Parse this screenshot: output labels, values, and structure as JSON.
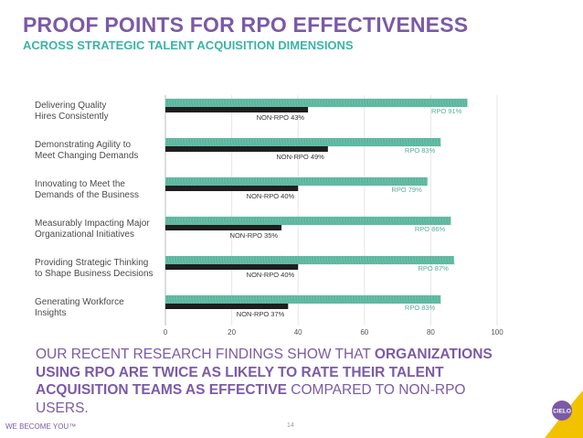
{
  "header": {
    "title": "PROOF POINTS FOR RPO EFFECTIVENESS",
    "subtitle": "ACROSS STRATEGIC TALENT ACQUISITION DIMENSIONS"
  },
  "chart_data": {
    "type": "bar",
    "orientation": "horizontal",
    "categories": [
      [
        "Delivering Quality",
        "Hires Consistently"
      ],
      [
        "Demonstrating Agility to",
        "Meet Changing Demands"
      ],
      [
        "Innovating to Meet the",
        "Demands of the Business"
      ],
      [
        "Measurably Impacting Major",
        "Organizational Initiatives"
      ],
      [
        "Providing Strategic Thinking",
        "to Shape Business Decisions"
      ],
      [
        "Generating Workforce",
        "Insights"
      ]
    ],
    "series": [
      {
        "name": "RPO",
        "values": [
          91,
          83,
          79,
          86,
          87,
          83
        ],
        "labels": [
          "RPO 91%",
          "RPO 83%",
          "RPO 79%",
          "RPO 86%",
          "RPO 87%",
          "RPO 83%"
        ],
        "color": "#5bb69e"
      },
      {
        "name": "NON-RPO",
        "values": [
          43,
          49,
          40,
          35,
          40,
          37
        ],
        "labels": [
          "NON-RPO 43%",
          "NON-RPO 49%",
          "NON-RPO 40%",
          "NON-RPO 35%",
          "NON-RPO 40%",
          "NON-RPO 37%"
        ],
        "color": "#1e1e1e"
      }
    ],
    "xlim": [
      0,
      100
    ],
    "xticks": [
      "0",
      "20",
      "40",
      "60",
      "80",
      "100"
    ],
    "grid": true
  },
  "body": {
    "part1": "OUR RECENT RESEARCH FINDINGS SHOW THAT ",
    "part2_bold": "ORGANIZATIONS USING RPO ARE TWICE AS LIKELY TO RATE THEIR TALENT ACQUISITION TEAMS AS EFFECTIVE",
    "part3": " COMPARED TO NON-RPO USERS."
  },
  "footer": {
    "tagline": "WE BECOME YOU™",
    "page_number": "14",
    "logo_text": "CIELO"
  },
  "colors": {
    "purple": "#7b5aa6",
    "teal": "#3bb3a9",
    "gold": "#f2c200"
  }
}
